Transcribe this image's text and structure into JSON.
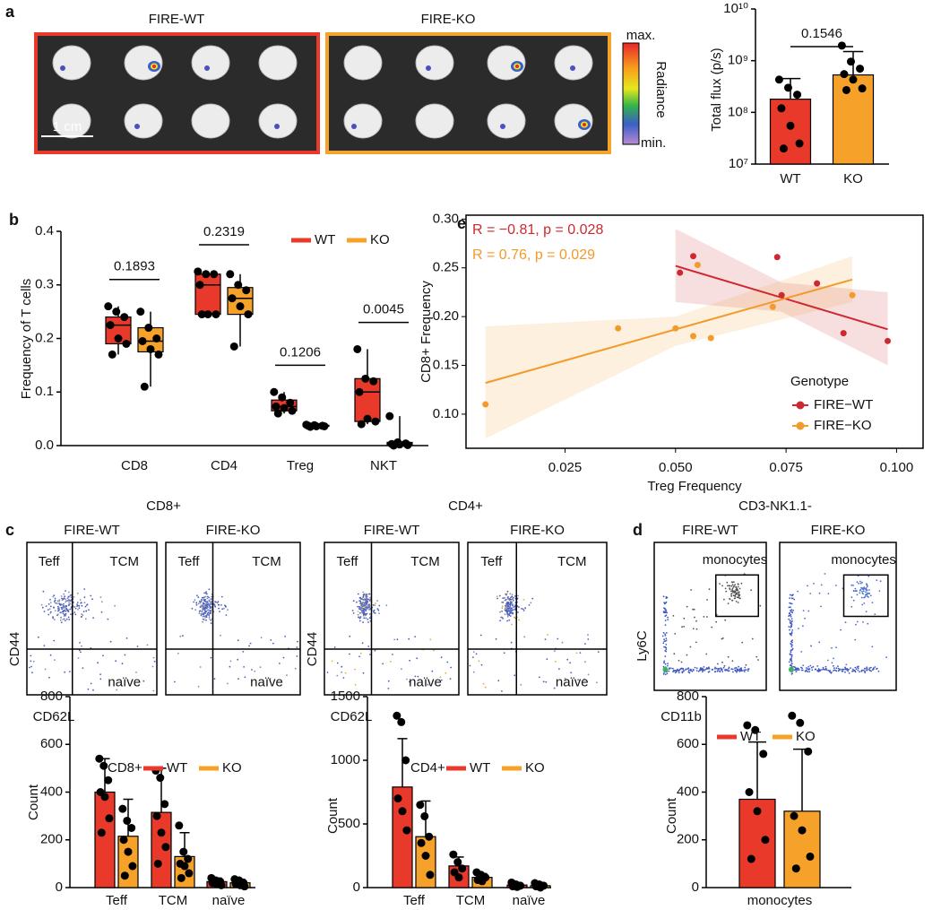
{
  "panels": {
    "letters": [
      "a",
      "b",
      "c",
      "d",
      "e"
    ],
    "ivis": {
      "titles": [
        "FIRE-WT",
        "FIRE-KO"
      ],
      "scale": "1 cm",
      "colorbar_max": "max.",
      "colorbar_min": "min.",
      "colorbar_label": "Radiance"
    },
    "flow": [
      {
        "title": "CD8+",
        "samples": [
          "FIRE-WT",
          "FIRE-KO"
        ],
        "gates": [
          "Teff",
          "TCM",
          "naïve"
        ],
        "y_label": "CD44",
        "x_label": "CD62L"
      },
      {
        "title": "CD4+",
        "samples": [
          "FIRE-WT",
          "FIRE-KO"
        ],
        "gates": [
          "Teff",
          "TCM",
          "naïve"
        ],
        "y_label": "CD44",
        "x_label": "CD62L"
      },
      {
        "title": "CD3-NK1.1-",
        "samples": [
          "FIRE-WT",
          "FIRE-KO"
        ],
        "gate": "monocytes",
        "y_label": "Ly6C",
        "x_label": "CD11b"
      }
    ]
  },
  "chart_data": [
    {
      "type": "bar",
      "y_label": "Total flux (p/s)",
      "log_scale": true,
      "categories": [
        "WT",
        "KO"
      ],
      "values": [
        180000000,
        530000000
      ],
      "errors": [
        270000000,
        970000000
      ],
      "points": [
        [
          430000000,
          300000000,
          220000000,
          120000000,
          55000000,
          25000000,
          20000000
        ],
        [
          1960000000,
          960000000,
          700000000,
          550000000,
          430000000,
          290000000,
          270000000
        ]
      ],
      "colors": [
        "#e8392b",
        "#f6a12a"
      ],
      "ylim": [
        10000000,
        10000000000
      ],
      "yticks": [
        {
          "value": 10000000,
          "label": "10⁷"
        },
        {
          "value": 100000000,
          "label": "10⁸"
        },
        {
          "value": 1000000000,
          "label": "10⁹"
        },
        {
          "value": 10000000000,
          "label": "10¹⁰"
        }
      ],
      "p_values": [
        "0.1546"
      ]
    },
    {
      "type": "box",
      "y_label": "Frequency  of  T cells",
      "categories": [
        "CD8",
        "CD4",
        "Treg",
        "NKT"
      ],
      "series": [
        {
          "name": "WT",
          "color": "#e8392b",
          "min": [
            0.17,
            0.245,
            0.06,
            0.04
          ],
          "q1": [
            0.19,
            0.245,
            0.065,
            0.045
          ],
          "median": [
            0.225,
            0.3,
            0.073,
            0.1
          ],
          "q3": [
            0.24,
            0.32,
            0.085,
            0.125
          ],
          "max": [
            0.26,
            0.325,
            0.1,
            0.18
          ],
          "points": [
            [
              0.26,
              0.25,
              0.24,
              0.225,
              0.2,
              0.19,
              0.17
            ],
            [
              0.325,
              0.32,
              0.32,
              0.3,
              0.245,
              0.245,
              0.245
            ],
            [
              0.1,
              0.09,
              0.08,
              0.073,
              0.07,
              0.065,
              0.06
            ],
            [
              0.18,
              0.125,
              0.12,
              0.1,
              0.05,
              0.045,
              0.04
            ]
          ]
        },
        {
          "name": "KO",
          "color": "#f6a12a",
          "min": [
            0.11,
            0.185,
            0.035,
            0
          ],
          "q1": [
            0.175,
            0.245,
            0.036,
            0.002
          ],
          "median": [
            0.195,
            0.275,
            0.037,
            0.004
          ],
          "q3": [
            0.22,
            0.295,
            0.038,
            0.006
          ],
          "max": [
            0.25,
            0.32,
            0.039,
            0.055
          ],
          "points": [
            [
              0.25,
              0.22,
              0.2,
              0.195,
              0.18,
              0.17,
              0.11
            ],
            [
              0.32,
              0.3,
              0.29,
              0.275,
              0.26,
              0.245,
              0.185
            ],
            [
              0.039,
              0.038,
              0.037,
              0.037,
              0.036,
              0.036,
              0.035
            ],
            [
              0.055,
              0.006,
              0.004,
              0.003,
              0.002,
              0.001,
              0
            ]
          ]
        }
      ],
      "ylim": [
        0,
        0.4
      ],
      "yticks": [
        {
          "value": 0,
          "label": "0.0"
        },
        0.1,
        0.2,
        0.3,
        0.4
      ],
      "p_values": [
        "0.1893",
        "0.2319",
        "0.1206",
        "0.0045"
      ],
      "legend": "top-right"
    },
    {
      "type": "scatter",
      "x_label": "Treg Frequency",
      "y_label": "CD8+ Frequency",
      "legend_title": "Genotype",
      "series": [
        {
          "name": "FIRE−WT",
          "color": "#cc2a30",
          "annotation": "R = −0.81, p = 0.028",
          "x": [
            0.051,
            0.054,
            0.073,
            0.074,
            0.082,
            0.088,
            0.098
          ],
          "y": [
            0.245,
            0.262,
            0.261,
            0.222,
            0.234,
            0.183,
            0.175
          ],
          "fit": {
            "x": [
              0.05,
              0.098
            ],
            "y": [
              0.252,
              0.187
            ]
          },
          "band": {
            "x": [
              0.05,
              0.074,
              0.098
            ],
            "upper": [
              0.29,
              0.235,
              0.225
            ],
            "lower": [
              0.215,
              0.205,
              0.15
            ]
          }
        },
        {
          "name": "FIRE−KO",
          "color": "#f29a2a",
          "annotation": "R = 0.76, p = 0.029",
          "x": [
            0.007,
            0.037,
            0.05,
            0.054,
            0.055,
            0.058,
            0.072,
            0.09
          ],
          "y": [
            0.11,
            0.188,
            0.188,
            0.18,
            0.253,
            0.178,
            0.21,
            0.222
          ],
          "fit": {
            "x": [
              0.007,
              0.09
            ],
            "y": [
              0.132,
              0.238
            ]
          },
          "band": {
            "x": [
              0.007,
              0.05,
              0.09
            ],
            "upper": [
              0.19,
              0.2,
              0.262
            ],
            "lower": [
              0.075,
              0.17,
              0.215
            ]
          }
        }
      ],
      "xlim": [
        0.0026,
        0.106
      ],
      "ylim": [
        0.065,
        0.304
      ],
      "xticks": [
        0.025,
        {
          "value": 0.05,
          "label": "0.050"
        },
        0.075,
        {
          "value": 0.1,
          "label": "0.100"
        }
      ],
      "yticks": [
        {
          "value": 0.1,
          "label": "0.10"
        },
        0.15,
        {
          "value": 0.2,
          "label": "0.20"
        },
        0.25,
        {
          "value": 0.3,
          "label": "0.30"
        }
      ]
    },
    {
      "type": "bar",
      "y_label": "Count",
      "legend_title": "CD8+",
      "categories": [
        "Teff",
        "TCM",
        "naïve"
      ],
      "series": [
        {
          "name": "WT",
          "color": "#e8392b",
          "values": [
            400,
            315,
            25
          ],
          "errors": [
            140,
            185,
            15
          ],
          "points": [
            [
              540,
              510,
              450,
              400,
              380,
              290,
              230
            ],
            [
              490,
              460,
              350,
              300,
              230,
              170,
              100
            ],
            [
              40,
              30,
              25,
              20,
              15,
              10
            ]
          ]
        },
        {
          "name": "KO",
          "color": "#f6a12a",
          "values": [
            215,
            130,
            20
          ],
          "errors": [
            155,
            100,
            15
          ],
          "points": [
            [
              330,
              280,
              250,
              200,
              150,
              90,
              50
            ],
            [
              260,
              150,
              120,
              100,
              90,
              60,
              40
            ],
            [
              35,
              30,
              20,
              15,
              10,
              5
            ]
          ]
        }
      ],
      "ylim": [
        0,
        800
      ],
      "yticks": [
        0,
        200,
        400,
        600,
        800
      ]
    },
    {
      "type": "bar",
      "y_label": "Count",
      "legend_title": "CD4+",
      "categories": [
        "Teff",
        "TCM",
        "naïve"
      ],
      "series": [
        {
          "name": "WT",
          "color": "#e8392b",
          "values": [
            790,
            170,
            20
          ],
          "errors": [
            380,
            70,
            15
          ],
          "points": [
            [
              1350,
              1300,
              1000,
              700,
              600,
              450
            ],
            [
              260,
              200,
              150,
              120,
              80
            ],
            [
              40,
              25,
              15,
              10,
              5
            ]
          ]
        },
        {
          "name": "KO",
          "color": "#f6a12a",
          "values": [
            400,
            80,
            15
          ],
          "errors": [
            280,
            30,
            15
          ],
          "points": [
            [
              650,
              560,
              400,
              350,
              250,
              100
            ],
            [
              120,
              100,
              80,
              60,
              50
            ],
            [
              35,
              25,
              15,
              10,
              0
            ]
          ]
        }
      ],
      "ylim": [
        0,
        1500
      ],
      "yticks": [
        0,
        500,
        1000,
        1500
      ]
    },
    {
      "type": "bar",
      "y_label": "Count",
      "categories": [
        "monocytes"
      ],
      "series": [
        {
          "name": "WT",
          "color": "#e8392b",
          "values": [
            370
          ],
          "errors": [
            240
          ],
          "points": [
            [
              680,
              660,
              560,
              400,
              320,
              200,
              120
            ]
          ]
        },
        {
          "name": "KO",
          "color": "#f6a12a",
          "values": [
            320
          ],
          "errors": [
            260
          ],
          "points": [
            [
              720,
              690,
              570,
              300,
              240,
              130,
              80
            ]
          ]
        }
      ],
      "ylim": [
        0,
        800
      ],
      "yticks": [
        0,
        200,
        400,
        600,
        800
      ]
    }
  ]
}
